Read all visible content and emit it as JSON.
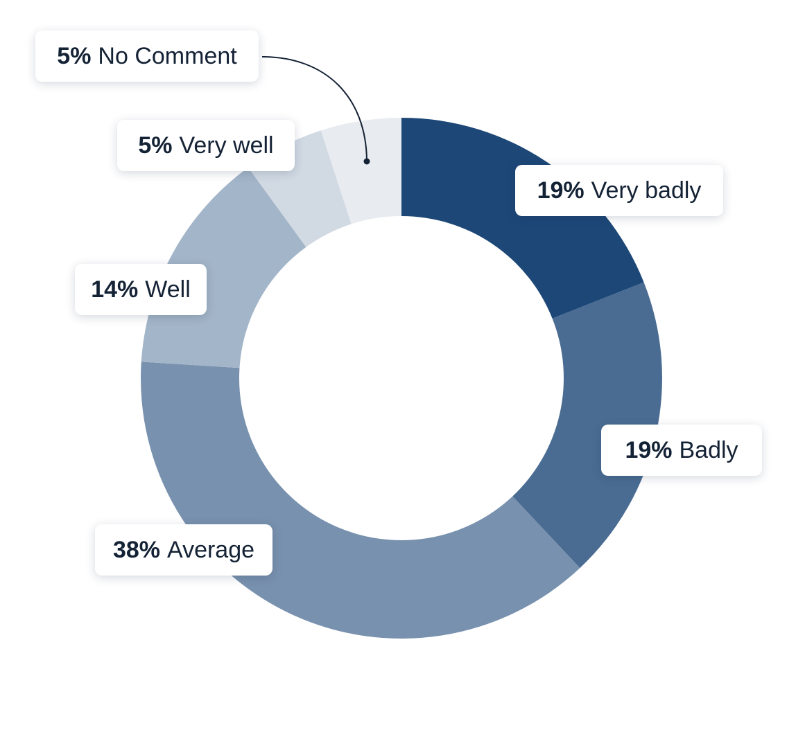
{
  "chart_data": {
    "type": "pie",
    "variant": "donut",
    "slices": [
      {
        "label": "Very badly",
        "percent_label": "19%",
        "value": 19,
        "color": "#1d4777"
      },
      {
        "label": "Badly",
        "percent_label": "19%",
        "value": 19,
        "color": "#4a6c92"
      },
      {
        "label": "Average",
        "percent_label": "38%",
        "value": 38,
        "color": "#7891ae"
      },
      {
        "label": "Well",
        "percent_label": "14%",
        "value": 14,
        "color": "#a3b5c8"
      },
      {
        "label": "Very well",
        "percent_label": "5%",
        "value": 5,
        "color": "#d1d9e3"
      },
      {
        "label": "No Comment",
        "percent_label": "5%",
        "value": 5,
        "color": "#e8ebf0"
      }
    ]
  }
}
